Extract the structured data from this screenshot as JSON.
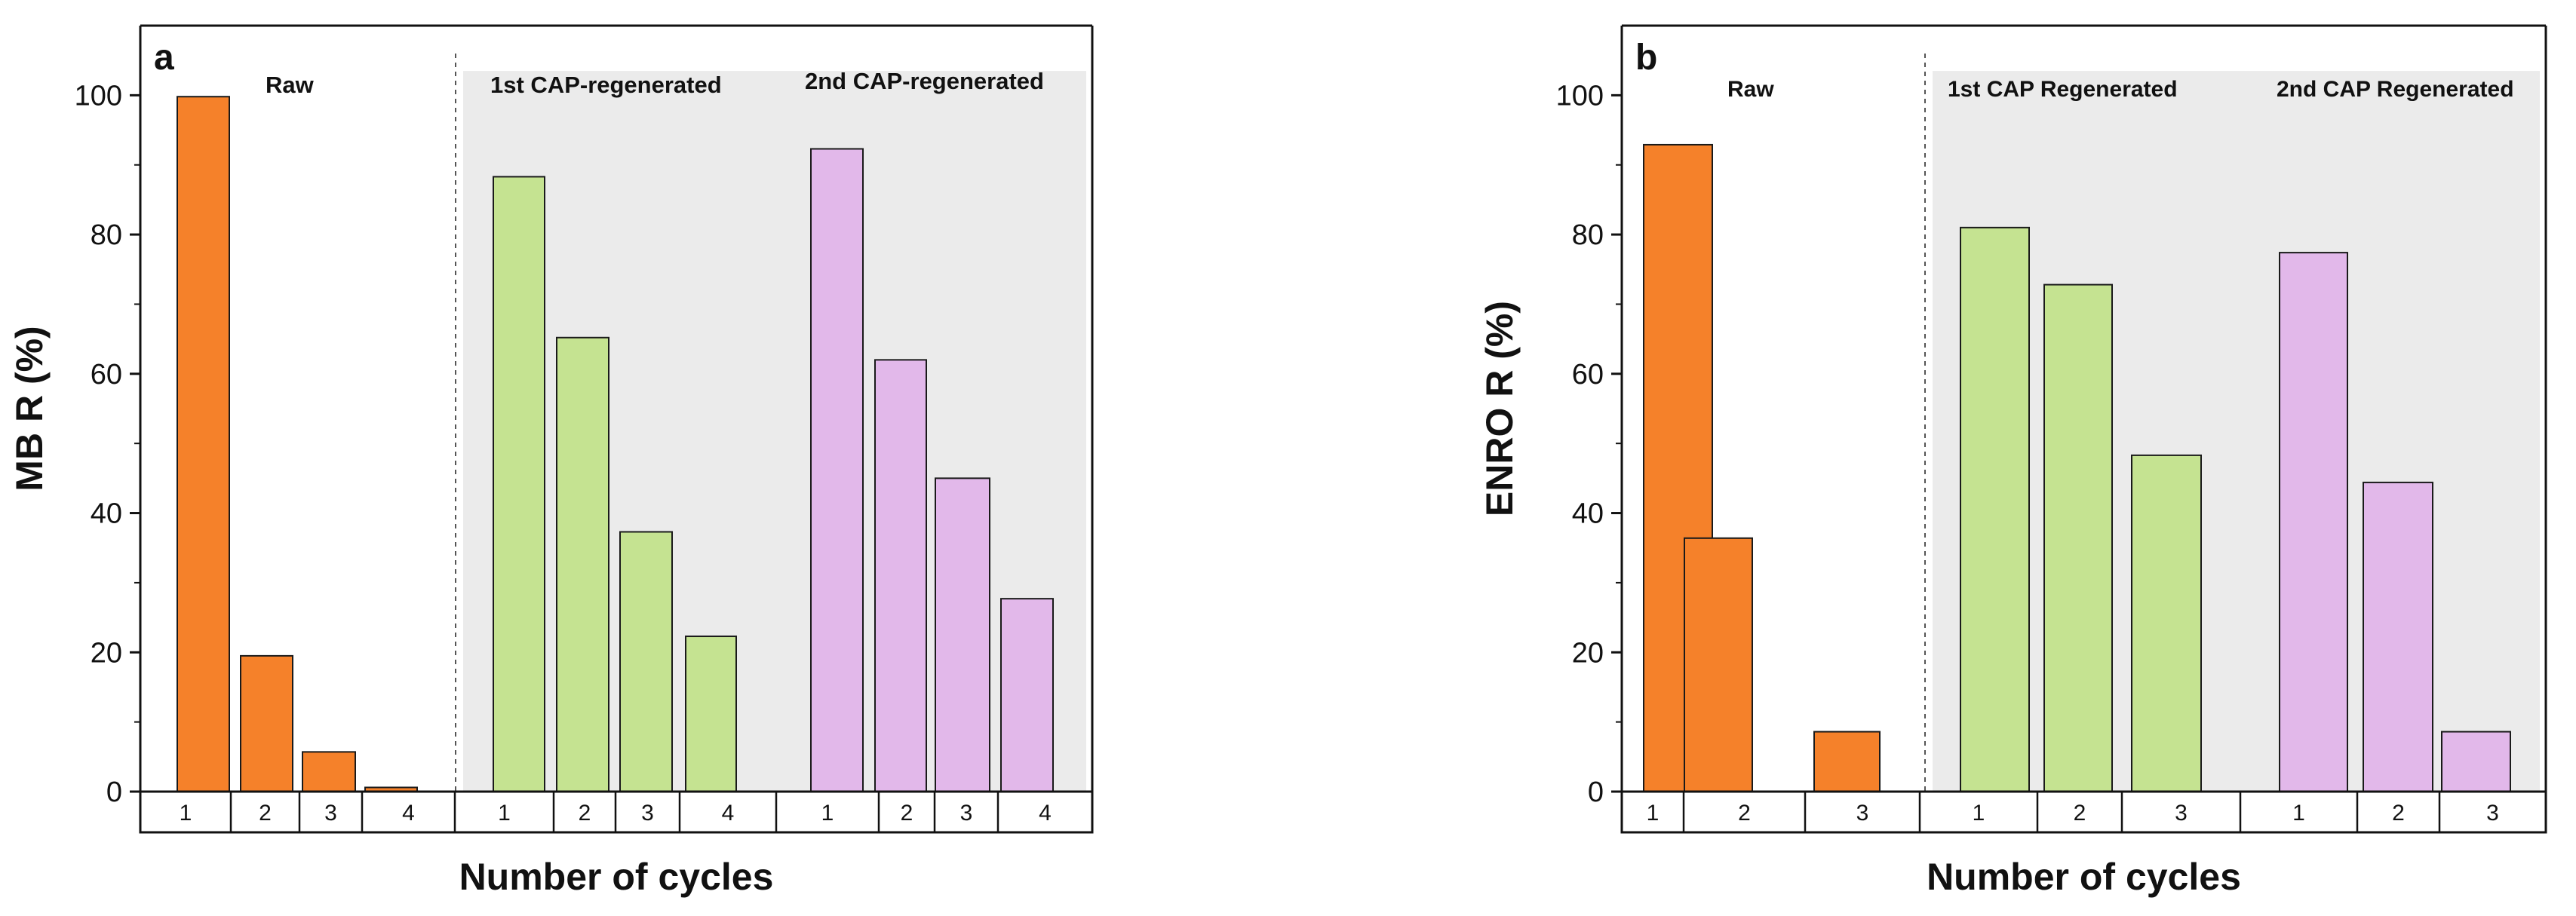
{
  "chart_data": [
    {
      "type": "bar",
      "panel_label": "a",
      "ylabel": "MB R (%)",
      "xlabel": "Number of cycles",
      "ylim": [
        0,
        110
      ],
      "yticks": [
        0,
        20,
        40,
        60,
        80,
        100
      ],
      "groups": [
        {
          "name": "Raw",
          "color": "#f5812a",
          "shaded": false,
          "categories": [
            "1",
            "2",
            "3",
            "4"
          ],
          "values": [
            99.8,
            19.5,
            5.7,
            0.6
          ]
        },
        {
          "name": "1st CAP-regenerated",
          "color": "#c5e391",
          "shaded": true,
          "categories": [
            "1",
            "2",
            "3",
            "4"
          ],
          "values": [
            88.3,
            65.2,
            37.3,
            22.3
          ]
        },
        {
          "name": "2nd CAP-regenerated",
          "color": "#e2b8ea",
          "shaded": true,
          "categories": [
            "1",
            "2",
            "3",
            "4"
          ],
          "values": [
            92.3,
            62.0,
            45.0,
            27.7
          ]
        }
      ]
    },
    {
      "type": "bar",
      "panel_label": "b",
      "ylabel": "ENRO R (%)",
      "xlabel": "Number of cycles",
      "ylim": [
        0,
        110
      ],
      "yticks": [
        0,
        20,
        40,
        60,
        80,
        100
      ],
      "groups": [
        {
          "name": "Raw",
          "color": "#f5812a",
          "shaded": false,
          "categories": [
            "1",
            "2",
            "3"
          ],
          "values": [
            92.9,
            36.4,
            8.6
          ]
        },
        {
          "name": "1st CAP Regenerated",
          "color": "#c5e391",
          "shaded": true,
          "categories": [
            "1",
            "2",
            "3"
          ],
          "values": [
            81.0,
            72.8,
            48.3
          ]
        },
        {
          "name": "2nd CAP Regenerated",
          "color": "#e2b8ea",
          "shaded": true,
          "categories": [
            "1",
            "2",
            "3"
          ],
          "values": [
            77.4,
            44.4,
            8.6
          ]
        }
      ]
    }
  ]
}
